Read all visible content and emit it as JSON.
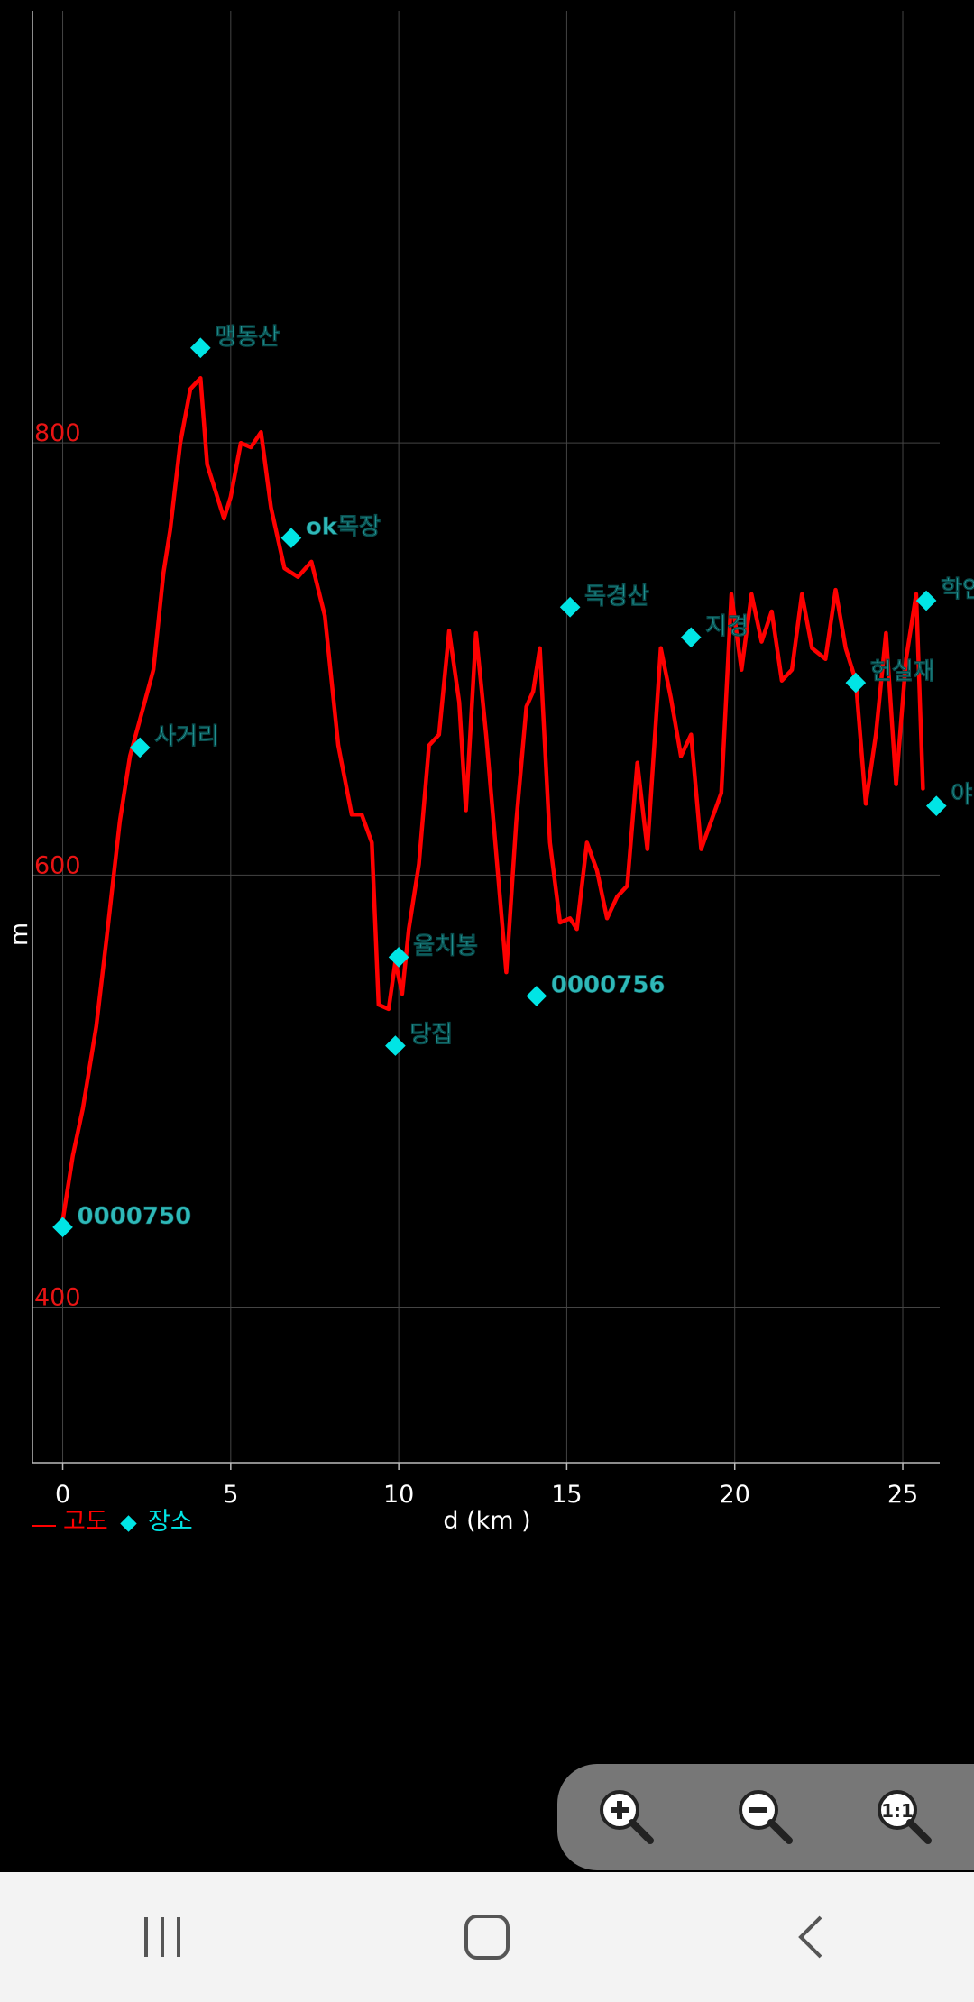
{
  "chart_data": {
    "type": "line",
    "xlabel": "d (km )",
    "ylabel": "m",
    "xlim": [
      -0.9,
      26.1
    ],
    "ylim": [
      328,
      1000
    ],
    "x_ticks": [
      0,
      5,
      10,
      15,
      20,
      25
    ],
    "y_ticks": [
      400,
      600,
      800
    ],
    "grid": true,
    "series": [
      {
        "name": "고도",
        "color": "#ff0000",
        "x": [
          0,
          0.3,
          0.6,
          1.0,
          1.3,
          1.7,
          2.0,
          2.3,
          2.7,
          3.0,
          3.2,
          3.5,
          3.8,
          4.1,
          4.3,
          4.5,
          4.8,
          5.0,
          5.3,
          5.6,
          5.9,
          6.2,
          6.6,
          7.0,
          7.4,
          7.8,
          8.2,
          8.6,
          8.9,
          9.2,
          9.4,
          9.7,
          9.9,
          10.1,
          10.3,
          10.6,
          10.9,
          11.2,
          11.5,
          11.8,
          12.0,
          12.3,
          12.6,
          12.9,
          13.2,
          13.5,
          13.8,
          14.0,
          14.2,
          14.5,
          14.8,
          15.1,
          15.3,
          15.6,
          15.9,
          16.2,
          16.5,
          16.8,
          17.1,
          17.4,
          17.8,
          18.1,
          18.4,
          18.7,
          19.0,
          19.3,
          19.6,
          19.9,
          20.2,
          20.5,
          20.8,
          21.1,
          21.4,
          21.7,
          22.0,
          22.3,
          22.7,
          23.0,
          23.3,
          23.6,
          23.9,
          24.2,
          24.5,
          24.8,
          25.1,
          25.4,
          25.6
        ],
        "y": [
          440,
          470,
          492,
          530,
          570,
          625,
          655,
          672,
          695,
          740,
          760,
          800,
          825,
          830,
          790,
          780,
          765,
          775,
          800,
          798,
          805,
          770,
          742,
          738,
          745,
          720,
          660,
          628,
          628,
          615,
          540,
          538,
          560,
          545,
          575,
          605,
          660,
          665,
          713,
          680,
          630,
          712,
          665,
          610,
          555,
          625,
          678,
          685,
          705,
          615,
          578,
          580,
          575,
          615,
          602,
          580,
          590,
          595,
          652,
          612,
          705,
          682,
          655,
          665,
          612,
          625,
          638,
          730,
          695,
          730,
          708,
          722,
          690,
          695,
          730,
          705,
          700,
          732,
          705,
          690,
          633,
          665,
          712,
          642,
          700,
          730,
          640
        ]
      }
    ],
    "markers": {
      "name": "장소",
      "color": "#00e5e5",
      "points": [
        {
          "x": 0,
          "y": 437,
          "label": "0000750"
        },
        {
          "x": 2.3,
          "y": 659,
          "label": "사거리"
        },
        {
          "x": 4.1,
          "y": 844,
          "label": "맹동산"
        },
        {
          "x": 6.8,
          "y": 756,
          "label": "ok목장"
        },
        {
          "x": 9.9,
          "y": 521,
          "label": "당집"
        },
        {
          "x": 10.0,
          "y": 562,
          "label": "율치봉"
        },
        {
          "x": 14.1,
          "y": 544,
          "label": "0000756"
        },
        {
          "x": 15.1,
          "y": 724,
          "label": "독경산"
        },
        {
          "x": 18.7,
          "y": 710,
          "label": "지경"
        },
        {
          "x": 23.6,
          "y": 689,
          "label": "헌실재"
        },
        {
          "x": 25.7,
          "y": 727,
          "label": "학인"
        },
        {
          "x": 26.0,
          "y": 632,
          "label": "야"
        }
      ]
    },
    "legend": {
      "placement": "bottom-left",
      "items": [
        "고도",
        "장소"
      ]
    }
  },
  "zoom_controls": {
    "icons": [
      "zoom-in-icon",
      "zoom-out-icon",
      "zoom-reset-icon"
    ],
    "reset_label": "1:1"
  },
  "navbar": {
    "icons": [
      "recent-apps-icon",
      "home-icon",
      "back-icon"
    ]
  },
  "colors": {
    "background": "#000000",
    "line": "#ff0000",
    "marker": "#00e5e5",
    "marker_label": "#2fb8b8",
    "grid": "#444444",
    "ytick": "#e81414"
  }
}
